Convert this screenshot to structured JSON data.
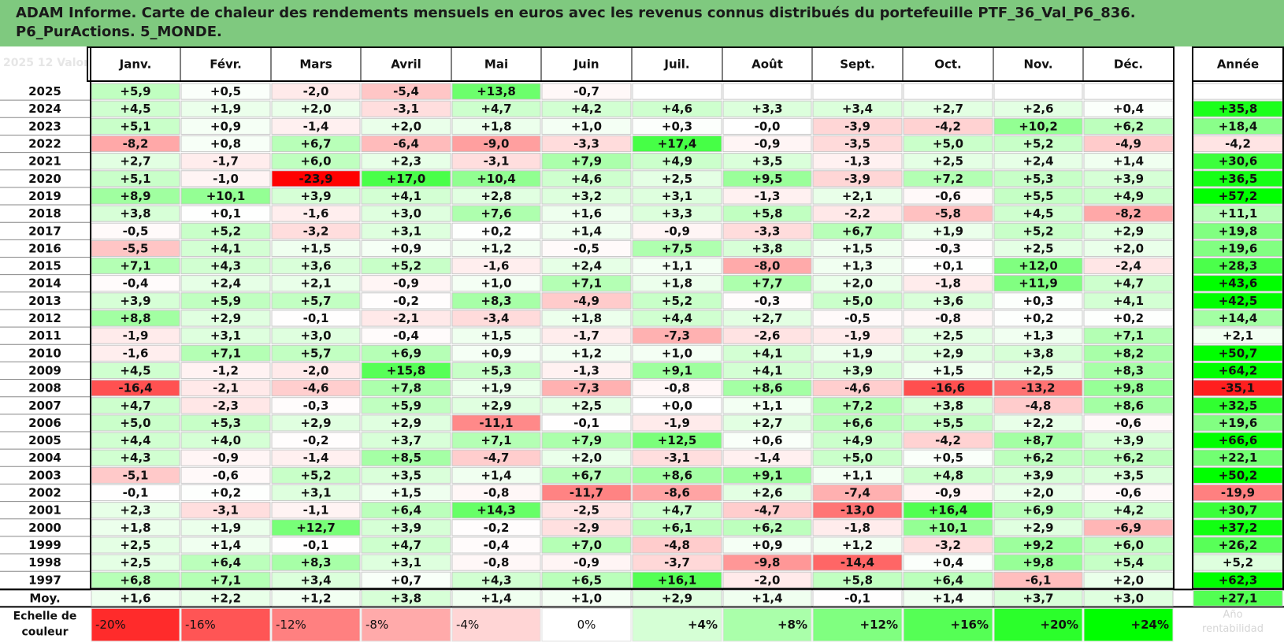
{
  "title": "ADAM Informe. Carte de chaleur des rendements mensuels en euros avec les revenus connus distribués du portefeuille PTF_36_Val_P6_836.\nP6_PurActions. 5_MONDE.",
  "colors": {
    "title_bg": "#7fc97f",
    "neg_max": "#ff0000",
    "pos_max": "#00ff00",
    "neutral": "#ffffff"
  },
  "chart_data": {
    "type": "heatmap",
    "title": "ADAM Informe. Carte de chaleur des rendements mensuels en euros avec les revenus connus distribués du portefeuille PTF_36_Val_P6_836.\nP6_PurActions. 5_MONDE.",
    "columns": [
      "Janv.",
      "Févr.",
      "Mars",
      "Avril",
      "Mai",
      "Juin",
      "Juil.",
      "Août",
      "Sept.",
      "Oct.",
      "Nov.",
      "Déc."
    ],
    "year_header": "Année",
    "rows": [
      {
        "year": "2025",
        "values": [
          "+5,9",
          "+0,5",
          "-2,0",
          "-5,4",
          "+13,8",
          "-0,7",
          "",
          "",
          "",
          "",
          "",
          ""
        ],
        "annual": ""
      },
      {
        "year": "2024",
        "values": [
          "+4,5",
          "+1,9",
          "+2,0",
          "-3,1",
          "+4,7",
          "+4,2",
          "+4,6",
          "+3,3",
          "+3,4",
          "+2,7",
          "+2,6",
          "+0,4"
        ],
        "annual": "+35,8"
      },
      {
        "year": "2023",
        "values": [
          "+5,1",
          "+0,9",
          "-1,4",
          "+2,0",
          "+1,8",
          "+1,0",
          "+0,3",
          "-0,0",
          "-3,9",
          "-4,2",
          "+10,2",
          "+6,2"
        ],
        "annual": "+18,4"
      },
      {
        "year": "2022",
        "values": [
          "-8,2",
          "+0,8",
          "+6,7",
          "-6,4",
          "-9,0",
          "-3,3",
          "+17,4",
          "-0,9",
          "-3,5",
          "+5,0",
          "+5,2",
          "-4,9"
        ],
        "annual": "-4,2"
      },
      {
        "year": "2021",
        "values": [
          "+2,7",
          "-1,7",
          "+6,0",
          "+2,3",
          "-3,1",
          "+7,9",
          "+4,9",
          "+3,5",
          "-1,3",
          "+2,5",
          "+2,4",
          "+1,4"
        ],
        "annual": "+30,6"
      },
      {
        "year": "2020",
        "values": [
          "+5,1",
          "-1,0",
          "-23,9",
          "+17,0",
          "+10,4",
          "+4,6",
          "+2,5",
          "+9,5",
          "-3,9",
          "+7,2",
          "+5,3",
          "+3,9"
        ],
        "annual": "+36,5"
      },
      {
        "year": "2019",
        "values": [
          "+8,9",
          "+10,1",
          "+3,9",
          "+4,1",
          "+2,8",
          "+3,2",
          "+3,1",
          "-1,3",
          "+2,1",
          "-0,6",
          "+5,5",
          "+4,9"
        ],
        "annual": "+57,2"
      },
      {
        "year": "2018",
        "values": [
          "+3,8",
          "+0,1",
          "-1,6",
          "+3,0",
          "+7,6",
          "+1,6",
          "+3,3",
          "+5,8",
          "-2,2",
          "-5,8",
          "+4,5",
          "-8,2"
        ],
        "annual": "+11,1"
      },
      {
        "year": "2017",
        "values": [
          "-0,5",
          "+5,2",
          "-3,2",
          "+3,1",
          "+0,2",
          "+1,4",
          "-0,9",
          "-3,3",
          "+6,7",
          "+1,9",
          "+5,2",
          "+2,9"
        ],
        "annual": "+19,8"
      },
      {
        "year": "2016",
        "values": [
          "-5,5",
          "+4,1",
          "+1,5",
          "+0,9",
          "+1,2",
          "-0,5",
          "+7,5",
          "+3,8",
          "+1,5",
          "-0,3",
          "+2,5",
          "+2,0"
        ],
        "annual": "+19,6"
      },
      {
        "year": "2015",
        "values": [
          "+7,1",
          "+4,3",
          "+3,6",
          "+5,2",
          "-1,6",
          "+2,4",
          "+1,1",
          "-8,0",
          "+1,3",
          "+0,1",
          "+12,0",
          "-2,4"
        ],
        "annual": "+28,3"
      },
      {
        "year": "2014",
        "values": [
          "-0,4",
          "+2,4",
          "+2,1",
          "-0,9",
          "+1,0",
          "+7,1",
          "+1,8",
          "+7,7",
          "+2,0",
          "-1,8",
          "+11,9",
          "+4,7"
        ],
        "annual": "+43,6"
      },
      {
        "year": "2013",
        "values": [
          "+3,9",
          "+5,9",
          "+5,7",
          "-0,2",
          "+8,3",
          "-4,9",
          "+5,2",
          "-0,3",
          "+5,0",
          "+3,6",
          "+0,3",
          "+4,1"
        ],
        "annual": "+42,5"
      },
      {
        "year": "2012",
        "values": [
          "+8,8",
          "+2,9",
          "-0,1",
          "-2,1",
          "-3,4",
          "+1,8",
          "+4,4",
          "+2,7",
          "-0,5",
          "-0,8",
          "+0,2",
          "+0,2"
        ],
        "annual": "+14,4"
      },
      {
        "year": "2011",
        "values": [
          "-1,9",
          "+3,1",
          "+3,0",
          "-0,4",
          "+1,5",
          "-1,7",
          "-7,3",
          "-2,6",
          "-1,9",
          "+2,5",
          "+1,3",
          "+7,1"
        ],
        "annual": "+2,1"
      },
      {
        "year": "2010",
        "values": [
          "-1,6",
          "+7,1",
          "+5,7",
          "+6,9",
          "+0,9",
          "+1,2",
          "+1,0",
          "+4,1",
          "+1,9",
          "+2,9",
          "+3,8",
          "+8,2"
        ],
        "annual": "+50,7"
      },
      {
        "year": "2009",
        "values": [
          "+4,5",
          "-1,2",
          "-2,0",
          "+15,8",
          "+5,3",
          "-1,3",
          "+9,1",
          "+4,1",
          "+3,9",
          "+1,5",
          "+2,5",
          "+8,3"
        ],
        "annual": "+64,2"
      },
      {
        "year": "2008",
        "values": [
          "-16,4",
          "-2,1",
          "-4,6",
          "+7,8",
          "+1,9",
          "-7,3",
          "-0,8",
          "+8,6",
          "-4,6",
          "-16,6",
          "-13,2",
          "+9,8"
        ],
        "annual": "-35,1"
      },
      {
        "year": "2007",
        "values": [
          "+4,7",
          "-2,3",
          "-0,3",
          "+5,9",
          "+2,9",
          "+2,5",
          "+0,0",
          "+1,1",
          "+7,2",
          "+3,8",
          "-4,8",
          "+8,6"
        ],
        "annual": "+32,5"
      },
      {
        "year": "2006",
        "values": [
          "+5,0",
          "+5,3",
          "+2,9",
          "+2,9",
          "-11,1",
          "-0,1",
          "-1,9",
          "+2,7",
          "+6,6",
          "+5,5",
          "+2,2",
          "-0,6"
        ],
        "annual": "+19,6"
      },
      {
        "year": "2005",
        "values": [
          "+4,4",
          "+4,0",
          "-0,2",
          "+3,7",
          "+7,1",
          "+7,9",
          "+12,5",
          "+0,6",
          "+4,9",
          "-4,2",
          "+8,7",
          "+3,9"
        ],
        "annual": "+66,6"
      },
      {
        "year": "2004",
        "values": [
          "+4,3",
          "-0,9",
          "-1,4",
          "+8,5",
          "-4,7",
          "+2,0",
          "-3,1",
          "-1,4",
          "+5,0",
          "+0,5",
          "+6,2",
          "+6,2"
        ],
        "annual": "+22,1"
      },
      {
        "year": "2003",
        "values": [
          "-5,1",
          "-0,6",
          "+5,2",
          "+3,5",
          "+1,4",
          "+6,7",
          "+8,6",
          "+9,1",
          "+1,1",
          "+4,8",
          "+3,9",
          "+3,5"
        ],
        "annual": "+50,2"
      },
      {
        "year": "2002",
        "values": [
          "-0,1",
          "+0,2",
          "+3,1",
          "+1,5",
          "-0,8",
          "-11,7",
          "-8,6",
          "+2,6",
          "-7,4",
          "-0,9",
          "+2,0",
          "-0,6"
        ],
        "annual": "-19,9"
      },
      {
        "year": "2001",
        "values": [
          "+2,3",
          "-3,1",
          "-1,1",
          "+6,4",
          "+14,3",
          "-2,5",
          "+4,7",
          "-4,7",
          "-13,0",
          "+16,4",
          "+6,9",
          "+4,2"
        ],
        "annual": "+30,7"
      },
      {
        "year": "2000",
        "values": [
          "+1,8",
          "+1,9",
          "+12,7",
          "+3,9",
          "-0,2",
          "-2,9",
          "+6,1",
          "+6,2",
          "-1,8",
          "+10,1",
          "+2,9",
          "-6,9"
        ],
        "annual": "+37,2"
      },
      {
        "year": "1999",
        "values": [
          "+2,5",
          "+1,4",
          "-0,1",
          "+4,7",
          "-0,4",
          "+7,0",
          "-4,8",
          "+0,9",
          "+1,2",
          "-3,2",
          "+9,2",
          "+6,0"
        ],
        "annual": "+26,2"
      },
      {
        "year": "1998",
        "values": [
          "+2,5",
          "+6,4",
          "+8,3",
          "+3,1",
          "-0,8",
          "-0,9",
          "-3,7",
          "-9,8",
          "-14,4",
          "+0,4",
          "+9,8",
          "+5,4"
        ],
        "annual": "+5,2"
      },
      {
        "year": "1997",
        "values": [
          "+6,8",
          "+7,1",
          "+3,4",
          "+0,7",
          "+4,3",
          "+6,5",
          "+16,1",
          "-2,0",
          "+5,8",
          "+6,4",
          "-6,1",
          "+2,0"
        ],
        "annual": "+62,3"
      }
    ],
    "average_label": "Moy.",
    "average": [
      "+1,6",
      "+2,2",
      "+1,2",
      "+3,8",
      "+1,4",
      "+1,0",
      "+2,9",
      "+1,4",
      "-0,1",
      "+1,4",
      "+3,7",
      "+3,0"
    ],
    "average_annual": "+27,1",
    "scale_label": "Echelle de\ncouleur",
    "scale": [
      {
        "label": "-20%",
        "value": -20
      },
      {
        "label": "-16%",
        "value": -16
      },
      {
        "label": "-12%",
        "value": -12
      },
      {
        "label": "-8%",
        "value": -8
      },
      {
        "label": "-4%",
        "value": -4
      },
      {
        "label": "0%",
        "value": 0
      },
      {
        "label": "+4%",
        "value": 4
      },
      {
        "label": "+8%",
        "value": 8
      },
      {
        "label": "+12%",
        "value": 12
      },
      {
        "label": "+16%",
        "value": 16
      },
      {
        "label": "+20%",
        "value": 20
      },
      {
        "label": "+24%",
        "value": 24
      }
    ]
  }
}
